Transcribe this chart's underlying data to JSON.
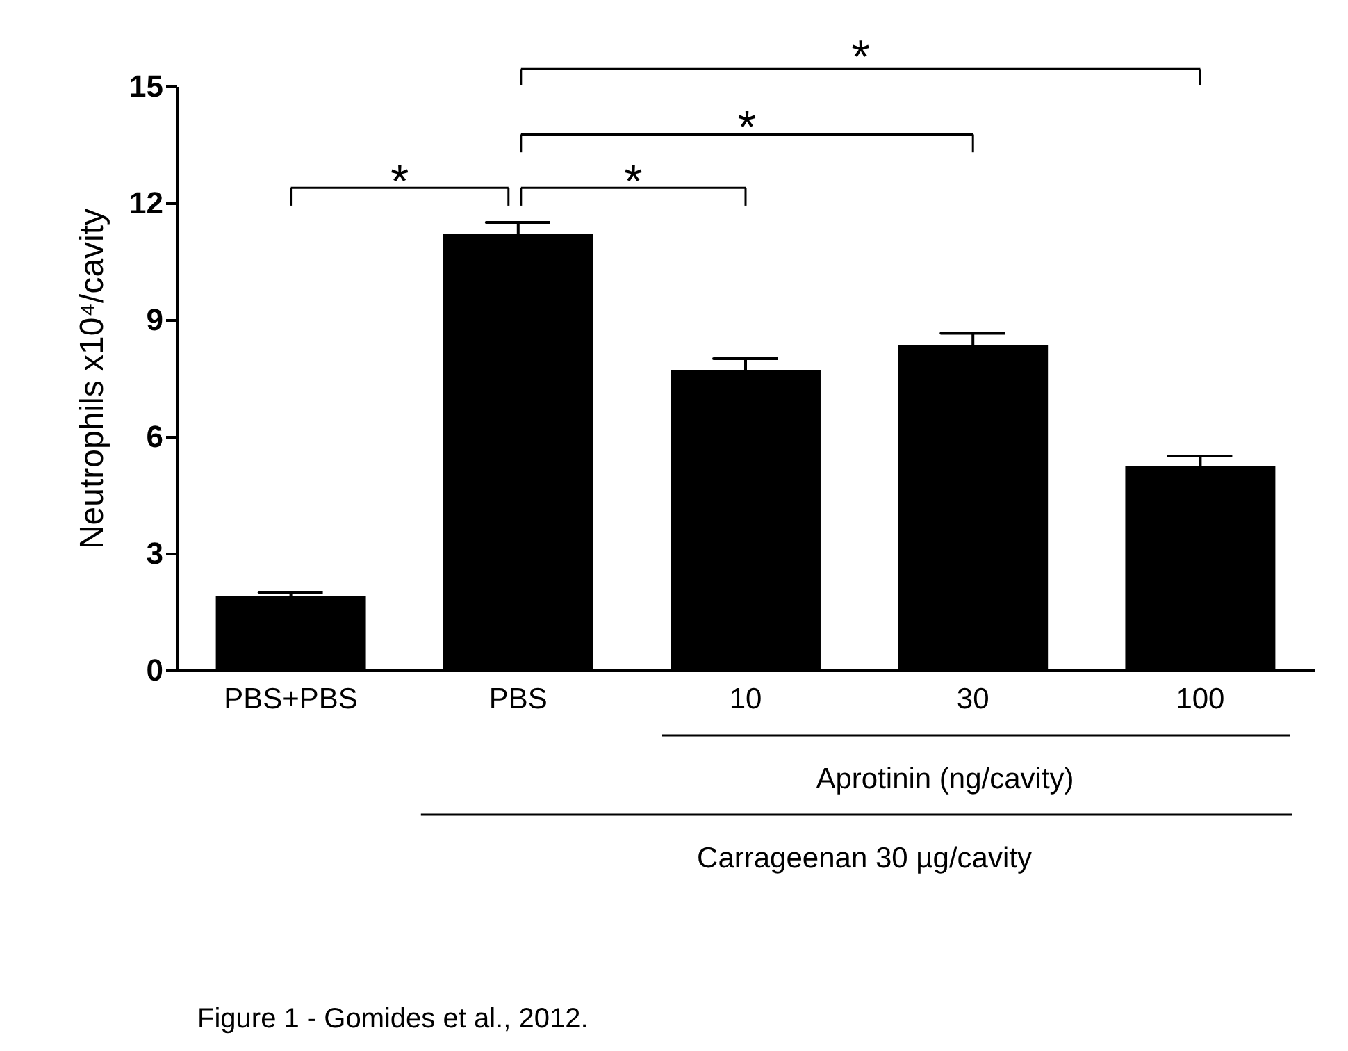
{
  "chart_data": {
    "type": "bar",
    "ylabel": "Neutrophils x10⁴/cavity",
    "categories": [
      "PBS+PBS",
      "PBS",
      "10",
      "30",
      "100"
    ],
    "values": [
      1.9,
      11.2,
      7.7,
      8.35,
      5.25
    ],
    "errors": [
      0.1,
      0.3,
      0.3,
      0.3,
      0.25
    ],
    "color": "#000000",
    "ylim": [
      0,
      15
    ],
    "yticks": [
      0,
      3,
      6,
      9,
      12,
      15
    ],
    "grid": false,
    "annotations": [
      "*",
      "*",
      "*",
      "*",
      "Aprotinin (ng/cavity)",
      "Carrageenan 30 µg/cavity",
      "Figure 1 - Gomides et al., 2012."
    ]
  }
}
